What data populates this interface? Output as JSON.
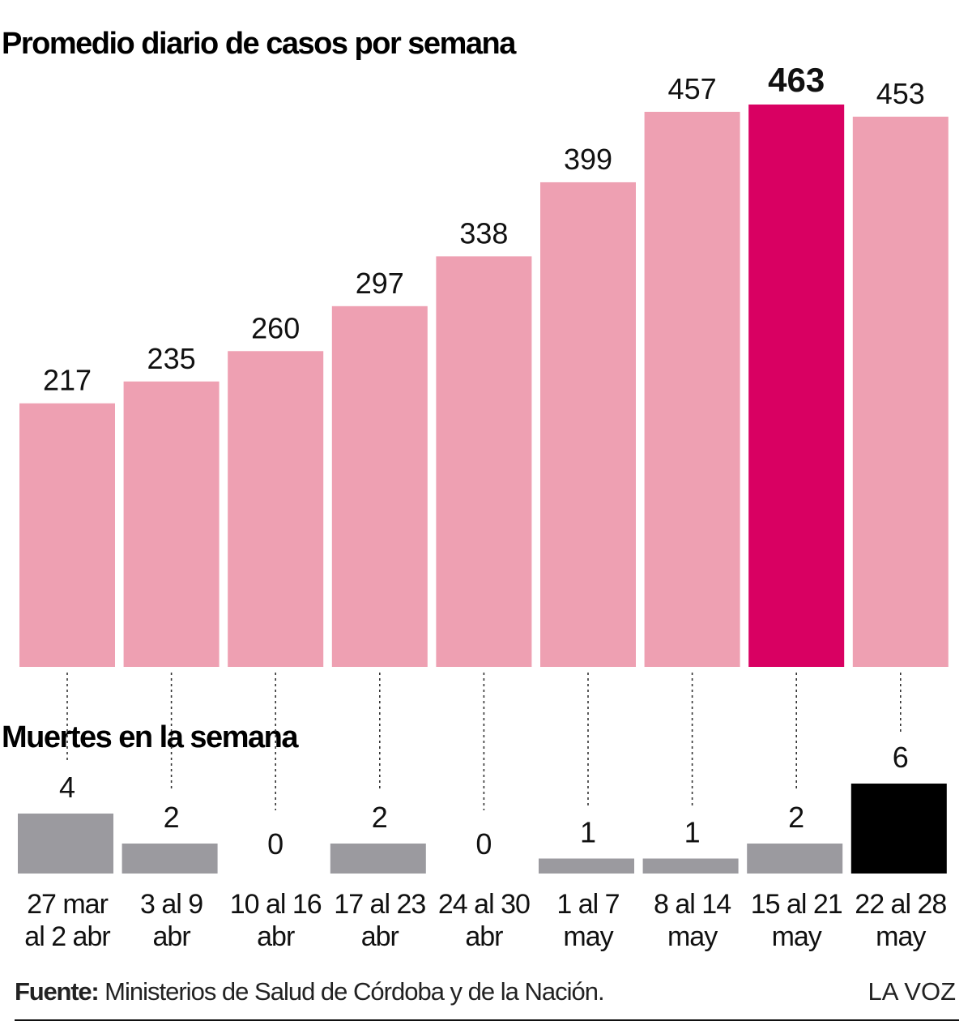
{
  "chart_data": [
    {
      "type": "bar",
      "title": "Promedio diario de casos por semana",
      "categories": [
        "27 mar al 2 abr",
        "3 al 9 abr",
        "10 al 16 abr",
        "17 al 23 abr",
        "24 al 30 abr",
        "1 al 7 may",
        "8 al 14 may",
        "15 al 21 may",
        "22 al 28 may"
      ],
      "values": [
        217,
        235,
        260,
        297,
        338,
        399,
        457,
        463,
        453
      ],
      "ylim": [
        0,
        463
      ],
      "bar_color": "#eea0b2",
      "highlight_color": "#d90062",
      "highlight_index": 7,
      "grid": false
    },
    {
      "type": "bar",
      "title": "Muertes en la semana",
      "categories": [
        "27 mar al 2 abr",
        "3 al 9 abr",
        "10 al 16 abr",
        "17 al 23 abr",
        "24 al 30 abr",
        "1 al 7 may",
        "8 al 14 may",
        "15 al 21 may",
        "22 al 28 may"
      ],
      "values": [
        4,
        2,
        0,
        2,
        0,
        1,
        1,
        2,
        6
      ],
      "ylim": [
        0,
        6
      ],
      "bar_color": "#9b9a9f",
      "highlight_color": "#000000",
      "highlight_index": 8,
      "grid": false
    }
  ],
  "category_labels": [
    [
      "27 mar",
      "al 2 abr"
    ],
    [
      "3 al 9",
      "abr"
    ],
    [
      "10 al 16",
      "abr"
    ],
    [
      "17 al 23",
      "abr"
    ],
    [
      "24 al 30",
      "abr"
    ],
    [
      "1 al 7",
      "may"
    ],
    [
      "8 al 14",
      "may"
    ],
    [
      "15 al 21",
      "may"
    ],
    [
      "22 al 28",
      "may"
    ]
  ],
  "footer": {
    "source_label": "Fuente:",
    "source_text": "Ministerios de Salud de Córdoba y de la Nación.",
    "brand": "LA VOZ"
  }
}
